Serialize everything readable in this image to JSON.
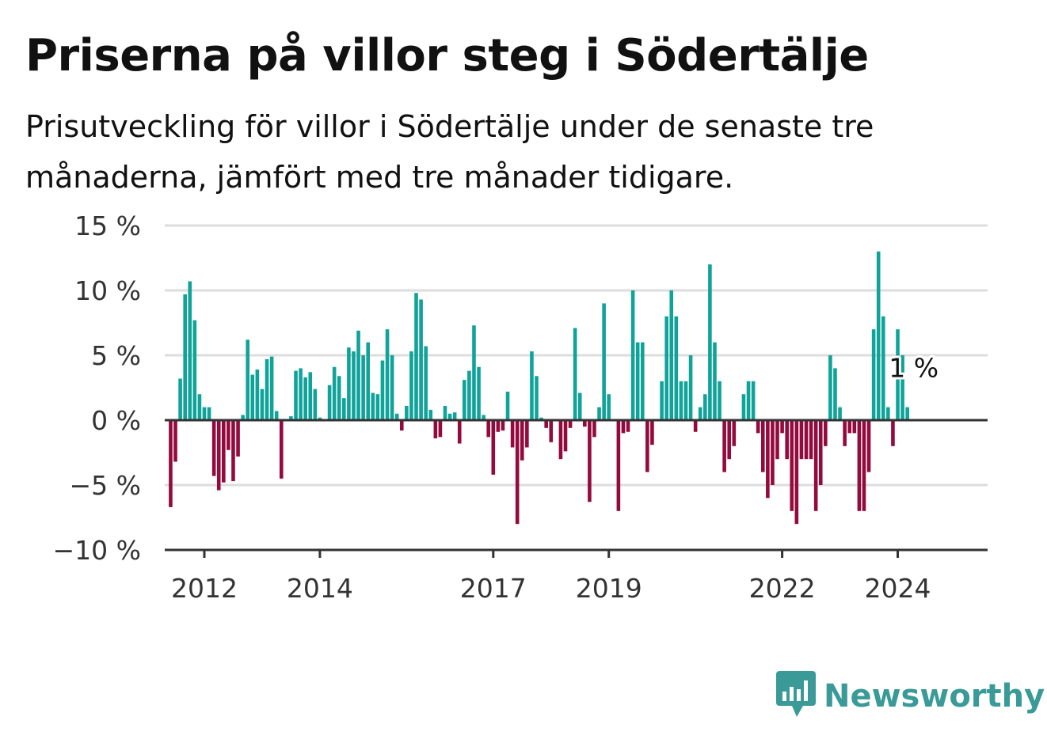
{
  "title": "Priserna på villor steg i Södertälje",
  "subtitle": "Prisutveckling för villor i Södertälje under de senaste tre månaderna, jämfört med tre månader tidigare.",
  "brand": {
    "name": "Newsworthy",
    "icon": "newsworthy-logo-icon",
    "color": "#3a9a98"
  },
  "colors": {
    "positive": "#10a39a",
    "negative": "#930a3c",
    "grid": "#dddddd",
    "axis": "#333333"
  },
  "chart_data": {
    "type": "bar",
    "title": "Priserna på villor steg i Södertälje",
    "xlabel": "",
    "ylabel": "",
    "ylim": [
      -10,
      15
    ],
    "y_ticks": [
      {
        "value": 15,
        "label": "15 %"
      },
      {
        "value": 10,
        "label": "10 %"
      },
      {
        "value": 5,
        "label": "5 %"
      },
      {
        "value": 0,
        "label": "0 %"
      },
      {
        "value": -5,
        "label": "−5 %"
      },
      {
        "value": -10,
        "label": "−10 %"
      }
    ],
    "x_ticks": [
      {
        "value": "2012-01",
        "label": "2012"
      },
      {
        "value": "2014-01",
        "label": "2014"
      },
      {
        "value": "2017-01",
        "label": "2017"
      },
      {
        "value": "2019-01",
        "label": "2019"
      },
      {
        "value": "2022-01",
        "label": "2022"
      },
      {
        "value": "2024-01",
        "label": "2024"
      }
    ],
    "x_start": "2011-06",
    "grid": true,
    "end_label": "1 %",
    "values": [
      -6.7,
      -3.2,
      3.2,
      9.7,
      10.7,
      7.7,
      2.0,
      1.0,
      1.0,
      -4.3,
      -5.4,
      -4.8,
      -2.3,
      -4.7,
      -2.8,
      0.4,
      6.2,
      3.5,
      3.9,
      2.4,
      4.7,
      4.9,
      0.7,
      -4.5,
      0.0,
      0.3,
      3.8,
      4.0,
      3.3,
      3.7,
      2.4,
      0.2,
      0.0,
      2.7,
      4.1,
      3.4,
      1.7,
      5.6,
      5.3,
      6.9,
      5.0,
      6.0,
      2.1,
      2.0,
      4.6,
      7.0,
      5.0,
      0.5,
      -0.8,
      1.1,
      5.3,
      9.8,
      9.3,
      5.7,
      0.8,
      -1.4,
      -1.3,
      1.1,
      0.5,
      0.6,
      -1.8,
      3.1,
      3.8,
      7.3,
      4.1,
      0.4,
      -1.3,
      -4.2,
      -0.9,
      -0.8,
      2.2,
      -2.1,
      -8.0,
      -3.1,
      -2.1,
      5.3,
      3.4,
      0.2,
      -0.6,
      -1.7,
      0.0,
      -3.0,
      -2.4,
      -0.6,
      7.1,
      2.1,
      -0.5,
      -6.3,
      -1.3,
      1.0,
      9.0,
      2.0,
      0.0,
      -7.0,
      -1.0,
      -0.9,
      10.0,
      6.0,
      6.0,
      -4.0,
      -1.9,
      0.0,
      3.0,
      8.0,
      10.0,
      8.0,
      3.0,
      3.0,
      5.0,
      -0.9,
      1.0,
      2.0,
      12.0,
      6.0,
      3.0,
      -4.0,
      -3.0,
      -2.0,
      0.0,
      2.0,
      3.0,
      3.0,
      -1.0,
      -4.0,
      -6.0,
      -5.0,
      -3.0,
      -1.0,
      -3.0,
      -7.0,
      -8.0,
      -3.0,
      -3.0,
      -3.0,
      -7.0,
      -5.0,
      -2.0,
      5.0,
      4.0,
      1.0,
      -2.0,
      -1.0,
      -1.0,
      -7.0,
      -7.0,
      -4.0,
      7.0,
      13.0,
      8.0,
      1.0,
      -2.0,
      7.0,
      5.0,
      1.0
    ]
  }
}
